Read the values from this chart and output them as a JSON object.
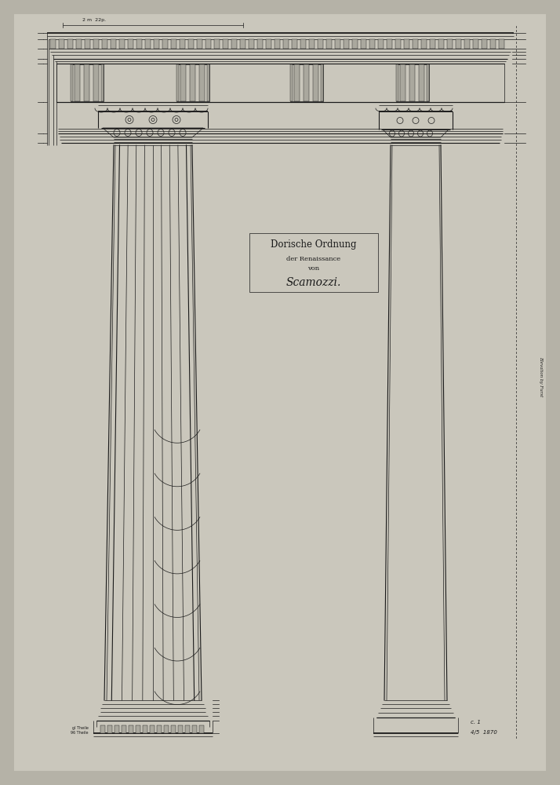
{
  "background_color": "#b5b2a7",
  "paper_color": "#cac7bc",
  "line_color": "#1a1a1a",
  "title_line1": "Dorische Ordnung",
  "title_line2": "der Renaissance",
  "title_line3": "von",
  "title_line4": "Scamozzi.",
  "annotation_bottom_right_1": "c. 1",
  "annotation_bottom_right_2": "4/5  1870",
  "annotation_right_side": "Elevation by Furst",
  "fig_width": 7.14,
  "fig_height": 10.0,
  "dpi": 100
}
